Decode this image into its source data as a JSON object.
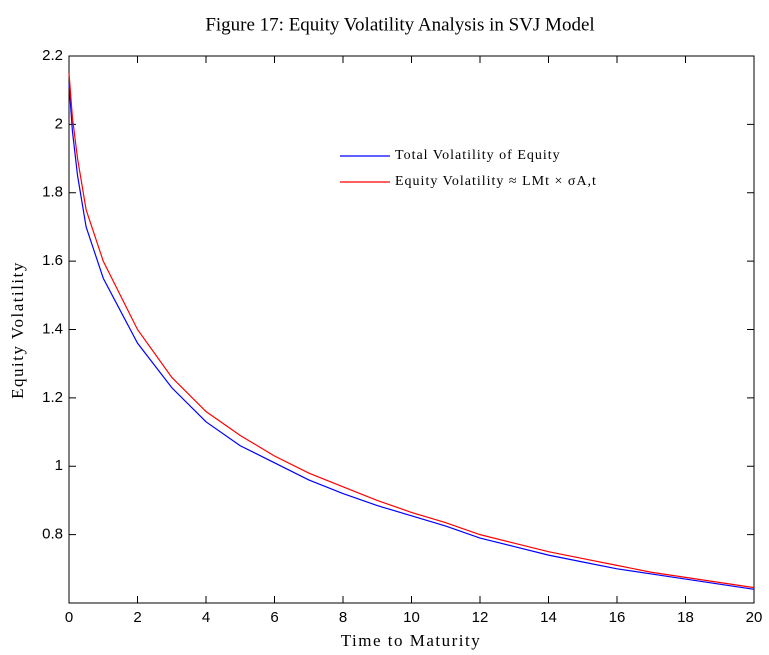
{
  "chart_data": {
    "type": "line",
    "title": "Figure 17: Equity Volatility Analysis in SVJ Model",
    "xlabel": "Time to Maturity",
    "ylabel": "Equity Volatility",
    "x": [
      0,
      0.1,
      0.25,
      0.5,
      1,
      2,
      3,
      4,
      5,
      6,
      7,
      8,
      9,
      10,
      11,
      12,
      13,
      14,
      15,
      16,
      17,
      18,
      19,
      20
    ],
    "series": [
      {
        "name": "Total Volatility of Equity",
        "color": "#0000ff",
        "values": [
          2.12,
          1.98,
          1.85,
          1.7,
          1.55,
          1.36,
          1.23,
          1.13,
          1.06,
          1.01,
          0.96,
          0.92,
          0.885,
          0.855,
          0.825,
          0.79,
          0.765,
          0.74,
          0.72,
          0.7,
          0.685,
          0.67,
          0.655,
          0.64
        ]
      },
      {
        "name": "Equity Volatility ≈ LMt × σA,t",
        "color": "#ff0000",
        "values": [
          2.15,
          2.02,
          1.9,
          1.75,
          1.6,
          1.4,
          1.26,
          1.16,
          1.09,
          1.03,
          0.98,
          0.94,
          0.9,
          0.865,
          0.835,
          0.8,
          0.775,
          0.75,
          0.73,
          0.71,
          0.69,
          0.675,
          0.66,
          0.645
        ]
      }
    ],
    "xlim": [
      0,
      20
    ],
    "xticks": [
      0,
      2,
      4,
      6,
      8,
      10,
      12,
      14,
      16,
      18,
      20
    ],
    "ylim": [
      0.6,
      2.2
    ],
    "yticks": [
      0.8,
      1,
      1.2,
      1.4,
      1.6,
      1.8,
      2,
      2.2
    ],
    "grid": false,
    "legend": "upper right"
  }
}
